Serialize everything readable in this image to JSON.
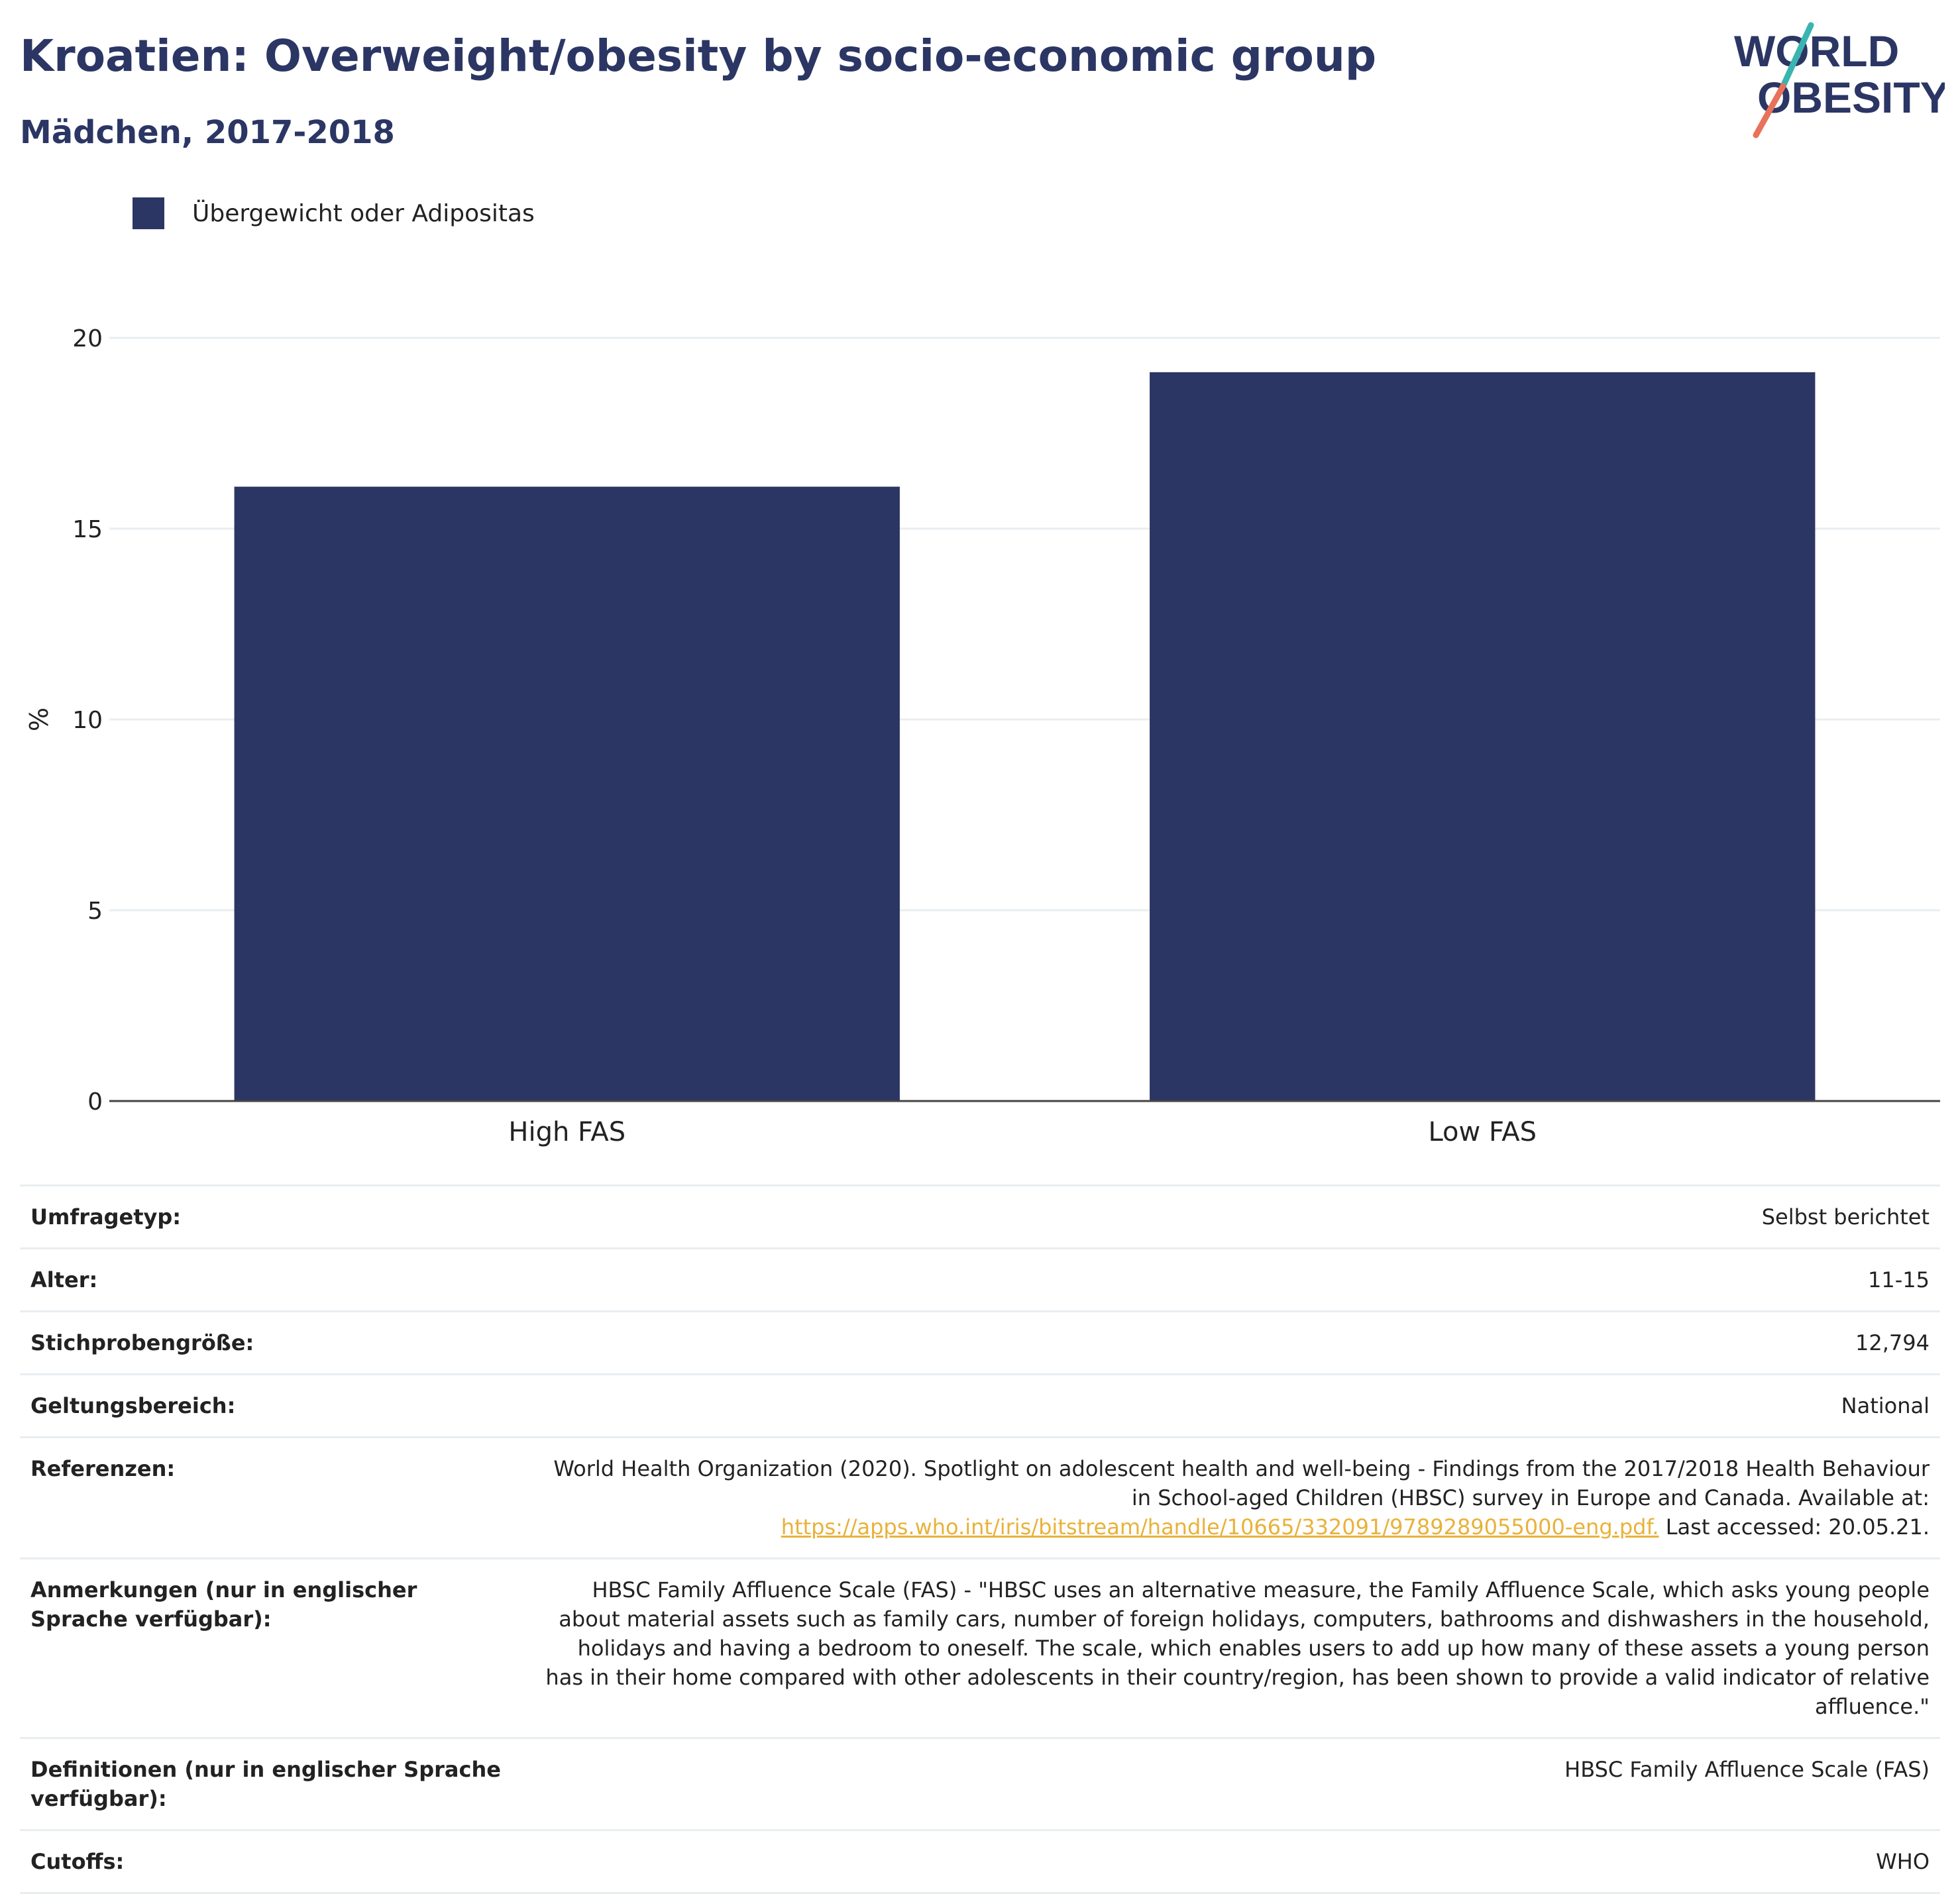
{
  "header": {
    "title": "Kroatien: Overweight/obesity by socio-economic group",
    "subtitle": "Mädchen, 2017-2018"
  },
  "logo": {
    "line1": "WORLD",
    "line2": "OBESITY",
    "colors": {
      "text": "#2b3664",
      "slash_top": "#3ab4b0",
      "slash_bottom": "#e8725a"
    }
  },
  "chart_data": {
    "type": "bar",
    "title": "Kroatien: Overweight/obesity by socio-economic group",
    "subtitle": "Mädchen, 2017-2018",
    "categories": [
      "High FAS",
      "Low FAS"
    ],
    "series": [
      {
        "name": "Übergewicht oder Adipositas",
        "values": [
          16.1,
          19.1
        ],
        "color": "#2b3664"
      }
    ],
    "xlabel": "",
    "ylabel": "%",
    "ylim": [
      0,
      20
    ],
    "yticks": [
      0,
      5,
      10,
      15,
      20
    ],
    "grid": true,
    "legend": "top-left"
  },
  "info": {
    "survey_type": {
      "label": "Umfragetyp:",
      "value": "Selbst berichtet"
    },
    "age": {
      "label": "Alter:",
      "value": "11-15"
    },
    "sample_size": {
      "label": "Stichprobengröße:",
      "value": "12,794"
    },
    "scope": {
      "label": "Geltungsbereich:",
      "value": "National"
    },
    "references": {
      "label": "Referenzen:",
      "text": "World Health Organization (2020). Spotlight on adolescent health and well-being - Findings from the 2017/2018 Health Behaviour in School-aged Children (HBSC) survey in Europe and Canada. Available at:",
      "link": "https://apps.who.int/iris/bitstream/handle/10665/332091/9789289055000-eng.pdf.",
      "suffix": "Last accessed: 20.05.21."
    },
    "notes": {
      "label": "Anmerkungen (nur in englischer Sprache verfügbar):",
      "value": "HBSC Family Affluence Scale (FAS) - \"HBSC uses an alternative measure, the Family Affluence Scale, which asks young people about material assets such as family cars, number of foreign holidays, computers, bathrooms and dishwashers in the household, holidays and having a bedroom to oneself. The scale, which enables users to add up how many of these assets a young person has in their home compared with other adolescents in their country/region, has been shown to provide a valid indicator of relative affluence.\""
    },
    "definitions": {
      "label": "Definitionen (nur in englischer Sprache verfügbar):",
      "value": "HBSC Family Affluence Scale (FAS)"
    },
    "cutoffs": {
      "label": "Cutoffs:",
      "value": "WHO"
    }
  }
}
